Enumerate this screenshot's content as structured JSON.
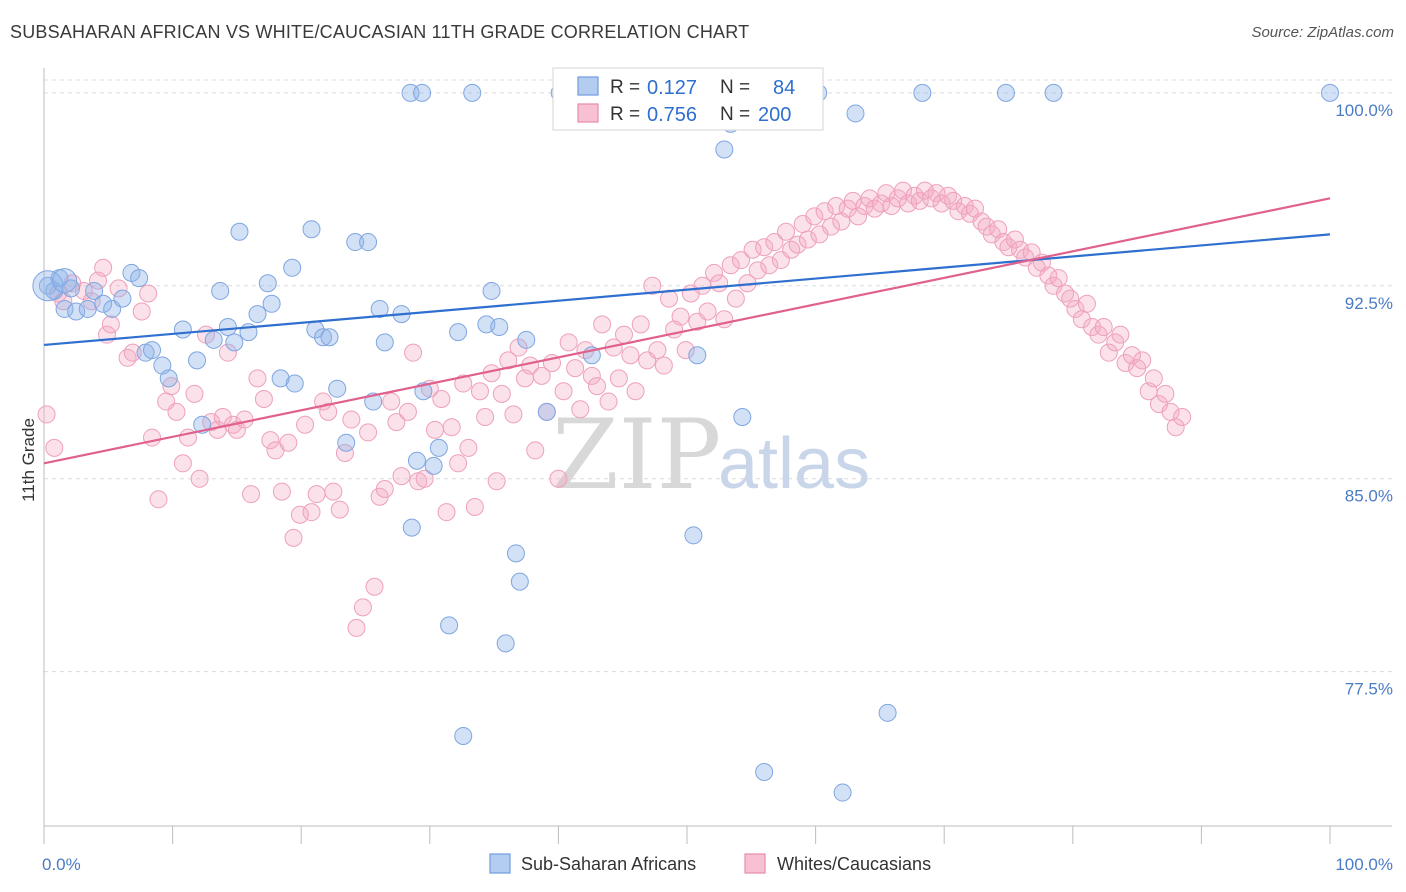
{
  "title": "SUBSAHARAN AFRICAN VS WHITE/CAUCASIAN 11TH GRADE CORRELATION CHART",
  "source": "Source: ZipAtlas.com",
  "watermark": {
    "zip": "ZIP",
    "atlas": "atlas"
  },
  "chart_data": {
    "type": "scatter",
    "title": "SUBSAHARAN AFRICAN VS WHITE/CAUCASIAN 11TH GRADE CORRELATION CHART",
    "xlabel": "",
    "ylabel": "11th Grade",
    "xlim": [
      0,
      100
    ],
    "ylim": [
      71.5,
      100.5
    ],
    "x_tick_labels": [
      "0.0%",
      "100.0%"
    ],
    "y_ticks": [
      {
        "value": 100.0,
        "label": "100.0%"
      },
      {
        "value": 92.5,
        "label": "92.5%"
      },
      {
        "value": 85.0,
        "label": "85.0%"
      },
      {
        "value": 77.5,
        "label": "77.5%"
      }
    ],
    "grid": true,
    "legend_position": "top-center",
    "series": [
      {
        "name": "Sub-Saharan Africans",
        "color": "#8fb3e8",
        "line_color": "#2f6fcf",
        "R": "0.127",
        "N": "84",
        "trend": {
          "x0": 0,
          "y0": 90.2,
          "x1": 100,
          "y1": 94.5
        },
        "points": [
          [
            0.3,
            92.5
          ],
          [
            0.8,
            92.3
          ],
          [
            1.2,
            92.8
          ],
          [
            1.6,
            91.6
          ],
          [
            2.1,
            92.4
          ],
          [
            2.5,
            91.5
          ],
          [
            3.4,
            91.6
          ],
          [
            3.9,
            92.3
          ],
          [
            4.6,
            91.8
          ],
          [
            5.3,
            91.6
          ],
          [
            6.1,
            92.0
          ],
          [
            6.8,
            93.0
          ],
          [
            7.4,
            92.8
          ],
          [
            7.9,
            89.9
          ],
          [
            8.4,
            90.0
          ],
          [
            9.2,
            89.4
          ],
          [
            9.7,
            88.9
          ],
          [
            10.8,
            90.8
          ],
          [
            11.9,
            89.6
          ],
          [
            12.3,
            87.1
          ],
          [
            13.2,
            90.4
          ],
          [
            13.7,
            92.3
          ],
          [
            14.3,
            90.9
          ],
          [
            14.8,
            90.3
          ],
          [
            15.2,
            94.6
          ],
          [
            15.9,
            90.7
          ],
          [
            16.6,
            91.4
          ],
          [
            17.4,
            92.6
          ],
          [
            17.7,
            91.8
          ],
          [
            18.4,
            88.9
          ],
          [
            19.3,
            93.2
          ],
          [
            19.5,
            88.7
          ],
          [
            20.8,
            94.7
          ],
          [
            21.1,
            90.8
          ],
          [
            21.7,
            90.5
          ],
          [
            22.2,
            90.5
          ],
          [
            22.8,
            88.5
          ],
          [
            23.5,
            86.4
          ],
          [
            24.2,
            94.2
          ],
          [
            25.2,
            94.2
          ],
          [
            25.6,
            88.0
          ],
          [
            26.1,
            91.6
          ],
          [
            26.5,
            90.3
          ],
          [
            27.8,
            91.4
          ],
          [
            28.6,
            83.1
          ],
          [
            29.0,
            85.7
          ],
          [
            29.5,
            88.4
          ],
          [
            30.3,
            85.5
          ],
          [
            30.7,
            86.2
          ],
          [
            31.5,
            79.3
          ],
          [
            32.2,
            90.7
          ],
          [
            32.6,
            75.0
          ],
          [
            34.4,
            91.0
          ],
          [
            34.8,
            92.3
          ],
          [
            35.4,
            90.9
          ],
          [
            35.9,
            78.6
          ],
          [
            36.7,
            82.1
          ],
          [
            37.0,
            81.0
          ],
          [
            37.5,
            90.4
          ],
          [
            39.1,
            87.6
          ],
          [
            40.1,
            100.0
          ],
          [
            40.6,
            100.0
          ],
          [
            40.9,
            100.0
          ],
          [
            41.3,
            100.0
          ],
          [
            42.6,
            89.8
          ],
          [
            45.2,
            100.0
          ],
          [
            50.5,
            82.8
          ],
          [
            50.8,
            89.8
          ],
          [
            51.5,
            100.0
          ],
          [
            52.9,
            97.8
          ],
          [
            53.4,
            98.8
          ],
          [
            54.3,
            87.4
          ],
          [
            56.0,
            73.6
          ],
          [
            60.2,
            100.0
          ],
          [
            62.1,
            72.8
          ],
          [
            63.1,
            99.2
          ],
          [
            65.6,
            75.9
          ],
          [
            68.3,
            100.0
          ],
          [
            74.8,
            100.0
          ],
          [
            78.5,
            100.0
          ],
          [
            28.5,
            100.0
          ],
          [
            29.4,
            100.0
          ],
          [
            33.3,
            100.0
          ],
          [
            100.0,
            100.0
          ]
        ]
      },
      {
        "name": "Whites/Caucasians",
        "color": "#f4a8c2",
        "line_color": "#e0608e",
        "R": "0.756",
        "N": "200",
        "trend": {
          "x0": 0,
          "y0": 85.6,
          "x1": 100,
          "y1": 95.9
        },
        "points": [
          [
            0.2,
            87.5
          ],
          [
            0.8,
            86.2
          ],
          [
            1.1,
            92.2
          ],
          [
            1.5,
            91.9
          ],
          [
            2.2,
            92.6
          ],
          [
            3.1,
            92.3
          ],
          [
            3.7,
            91.9
          ],
          [
            4.2,
            92.7
          ],
          [
            4.6,
            93.2
          ],
          [
            4.9,
            90.6
          ],
          [
            5.2,
            91.0
          ],
          [
            5.8,
            92.4
          ],
          [
            6.5,
            89.7
          ],
          [
            6.9,
            89.9
          ],
          [
            7.6,
            91.5
          ],
          [
            8.1,
            92.2
          ],
          [
            8.4,
            86.6
          ],
          [
            8.9,
            84.2
          ],
          [
            9.5,
            88.0
          ],
          [
            9.9,
            88.6
          ],
          [
            10.3,
            87.6
          ],
          [
            10.8,
            85.6
          ],
          [
            11.2,
            86.6
          ],
          [
            11.7,
            88.3
          ],
          [
            12.1,
            85.0
          ],
          [
            12.6,
            90.6
          ],
          [
            13.0,
            87.2
          ],
          [
            13.5,
            86.9
          ],
          [
            13.9,
            87.4
          ],
          [
            14.3,
            89.9
          ],
          [
            14.7,
            87.1
          ],
          [
            15.0,
            86.9
          ],
          [
            15.6,
            87.3
          ],
          [
            16.1,
            84.4
          ],
          [
            16.6,
            88.9
          ],
          [
            17.1,
            88.1
          ],
          [
            17.6,
            86.5
          ],
          [
            18.0,
            86.1
          ],
          [
            18.5,
            84.5
          ],
          [
            19.0,
            86.4
          ],
          [
            19.4,
            82.7
          ],
          [
            19.9,
            83.6
          ],
          [
            20.3,
            87.1
          ],
          [
            20.8,
            83.7
          ],
          [
            21.2,
            84.4
          ],
          [
            21.7,
            88.0
          ],
          [
            22.1,
            87.6
          ],
          [
            22.5,
            84.5
          ],
          [
            23.0,
            83.8
          ],
          [
            23.4,
            86.0
          ],
          [
            23.9,
            87.3
          ],
          [
            24.3,
            79.2
          ],
          [
            24.8,
            80.0
          ],
          [
            25.2,
            86.8
          ],
          [
            25.7,
            80.8
          ],
          [
            26.1,
            84.3
          ],
          [
            26.5,
            84.6
          ],
          [
            27.0,
            88.0
          ],
          [
            27.4,
            87.2
          ],
          [
            27.8,
            85.1
          ],
          [
            28.3,
            87.6
          ],
          [
            28.7,
            89.9
          ],
          [
            29.1,
            84.9
          ],
          [
            29.6,
            85.0
          ],
          [
            30.0,
            88.5
          ],
          [
            30.4,
            86.9
          ],
          [
            30.9,
            88.1
          ],
          [
            31.3,
            83.7
          ],
          [
            31.7,
            87.0
          ],
          [
            32.2,
            85.6
          ],
          [
            32.6,
            88.7
          ],
          [
            33.0,
            86.2
          ],
          [
            33.5,
            83.9
          ],
          [
            33.9,
            88.4
          ],
          [
            34.3,
            87.4
          ],
          [
            34.8,
            89.1
          ],
          [
            35.2,
            84.9
          ],
          [
            35.6,
            88.3
          ],
          [
            36.1,
            89.6
          ],
          [
            36.5,
            87.5
          ],
          [
            36.9,
            90.1
          ],
          [
            37.4,
            88.9
          ],
          [
            37.8,
            89.4
          ],
          [
            38.2,
            86.1
          ],
          [
            38.7,
            89.0
          ],
          [
            39.1,
            87.6
          ],
          [
            39.5,
            89.5
          ],
          [
            40.0,
            85.0
          ],
          [
            40.4,
            88.4
          ],
          [
            40.8,
            90.3
          ],
          [
            41.3,
            89.3
          ],
          [
            41.7,
            87.7
          ],
          [
            42.1,
            90.0
          ],
          [
            42.6,
            89.0
          ],
          [
            43.0,
            88.6
          ],
          [
            43.4,
            91.0
          ],
          [
            43.9,
            88.0
          ],
          [
            44.3,
            90.1
          ],
          [
            44.7,
            88.9
          ],
          [
            45.1,
            90.6
          ],
          [
            45.6,
            89.8
          ],
          [
            46.0,
            88.4
          ],
          [
            46.4,
            91.0
          ],
          [
            46.9,
            89.6
          ],
          [
            47.3,
            92.5
          ],
          [
            47.7,
            90.0
          ],
          [
            48.2,
            89.4
          ],
          [
            48.6,
            92.0
          ],
          [
            49.0,
            90.8
          ],
          [
            49.5,
            91.3
          ],
          [
            49.9,
            90.0
          ],
          [
            50.3,
            92.2
          ],
          [
            50.8,
            91.1
          ],
          [
            51.2,
            92.5
          ],
          [
            51.6,
            91.5
          ],
          [
            52.1,
            93.0
          ],
          [
            52.5,
            92.6
          ],
          [
            52.9,
            91.2
          ],
          [
            53.4,
            93.3
          ],
          [
            53.8,
            92.0
          ],
          [
            54.2,
            93.5
          ],
          [
            54.7,
            92.6
          ],
          [
            55.1,
            93.9
          ],
          [
            55.5,
            93.1
          ],
          [
            56.0,
            94.0
          ],
          [
            56.4,
            93.3
          ],
          [
            56.8,
            94.2
          ],
          [
            57.3,
            93.5
          ],
          [
            57.7,
            94.6
          ],
          [
            58.1,
            93.9
          ],
          [
            58.6,
            94.1
          ],
          [
            59.0,
            94.9
          ],
          [
            59.4,
            94.3
          ],
          [
            59.9,
            95.2
          ],
          [
            60.3,
            94.5
          ],
          [
            60.7,
            95.4
          ],
          [
            61.2,
            94.8
          ],
          [
            61.6,
            95.6
          ],
          [
            62.0,
            95.0
          ],
          [
            62.5,
            95.5
          ],
          [
            62.9,
            95.8
          ],
          [
            63.3,
            95.2
          ],
          [
            63.8,
            95.6
          ],
          [
            64.2,
            95.9
          ],
          [
            64.6,
            95.5
          ],
          [
            65.1,
            95.7
          ],
          [
            65.5,
            96.1
          ],
          [
            65.9,
            95.6
          ],
          [
            66.4,
            95.9
          ],
          [
            66.8,
            96.2
          ],
          [
            67.2,
            95.7
          ],
          [
            67.7,
            96.0
          ],
          [
            68.1,
            95.8
          ],
          [
            68.5,
            96.2
          ],
          [
            69.0,
            95.9
          ],
          [
            69.4,
            96.1
          ],
          [
            69.8,
            95.7
          ],
          [
            70.3,
            96.0
          ],
          [
            70.7,
            95.8
          ],
          [
            71.1,
            95.4
          ],
          [
            71.6,
            95.6
          ],
          [
            72.0,
            95.3
          ],
          [
            72.4,
            95.5
          ],
          [
            72.9,
            95.0
          ],
          [
            73.3,
            94.8
          ],
          [
            73.7,
            94.5
          ],
          [
            74.2,
            94.7
          ],
          [
            74.6,
            94.2
          ],
          [
            75.0,
            94.0
          ],
          [
            75.5,
            94.3
          ],
          [
            75.9,
            93.9
          ],
          [
            76.3,
            93.6
          ],
          [
            76.8,
            93.8
          ],
          [
            77.2,
            93.2
          ],
          [
            77.6,
            93.4
          ],
          [
            78.1,
            92.9
          ],
          [
            78.5,
            92.5
          ],
          [
            78.9,
            92.8
          ],
          [
            79.4,
            92.2
          ],
          [
            79.8,
            92.0
          ],
          [
            80.2,
            91.6
          ],
          [
            80.7,
            91.2
          ],
          [
            81.1,
            91.8
          ],
          [
            81.5,
            90.9
          ],
          [
            82.0,
            90.6
          ],
          [
            82.4,
            90.9
          ],
          [
            82.8,
            89.9
          ],
          [
            83.3,
            90.3
          ],
          [
            83.7,
            90.6
          ],
          [
            84.1,
            89.5
          ],
          [
            84.6,
            89.8
          ],
          [
            85.0,
            89.3
          ],
          [
            85.4,
            89.6
          ],
          [
            85.9,
            88.4
          ],
          [
            86.3,
            88.9
          ],
          [
            86.7,
            87.9
          ],
          [
            87.2,
            88.3
          ],
          [
            87.6,
            87.6
          ],
          [
            88.0,
            87.0
          ],
          [
            88.5,
            87.4
          ]
        ]
      }
    ]
  },
  "legend": {
    "r_label": "R =",
    "n_label": "N =",
    "rows": [
      {
        "r": "0.127",
        "n": "84"
      },
      {
        "r": "0.756",
        "n": "200"
      }
    ]
  },
  "bottom_legend": [
    "Sub-Saharan Africans",
    "Whites/Caucasians"
  ]
}
